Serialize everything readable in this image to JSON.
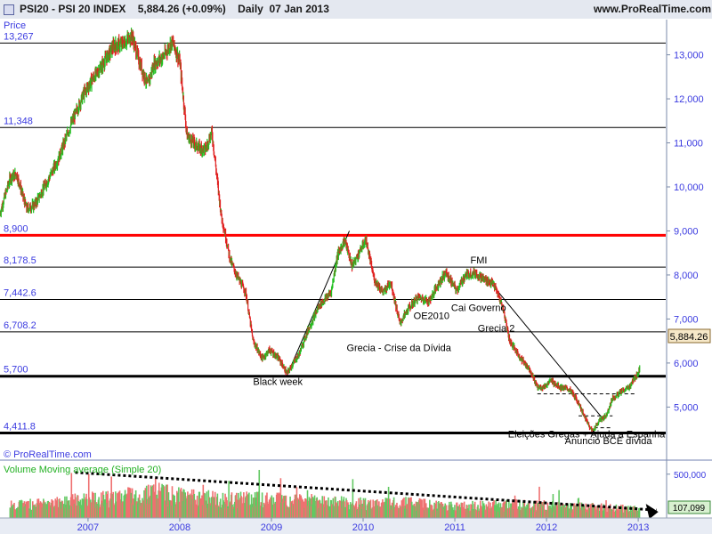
{
  "header": {
    "symbol": "PSI20 - PSI 20 INDEX",
    "price_change": "5,884.26 (+0.09%)",
    "period": "Daily  07 Jan 2013",
    "site": "www.ProRealTime.com"
  },
  "price_axis_label": "Price",
  "watermark": "© ProRealTime.com",
  "current_price_label": "5,884.26",
  "volume_label": "Volume Moving average (Simple 20)",
  "volume_current_label": "107,099",
  "colors": {
    "up": "#22c022",
    "down": "#e02020",
    "ma_red": "#ff0000",
    "accent_blue": "#3a3ae0"
  },
  "chart_data": {
    "type": "line",
    "title": "PSI20 - PSI 20 INDEX",
    "x_ticks": [
      "2007",
      "2008",
      "2009",
      "2010",
      "2011",
      "2012",
      "2013"
    ],
    "y_ticks": [
      "13,000",
      "12,000",
      "11,000",
      "10,000",
      "9,000",
      "8,000",
      "7,000",
      "6,000",
      "5,000"
    ],
    "y_tick_values": [
      13000,
      12000,
      11000,
      10000,
      9000,
      8000,
      7000,
      6000,
      5000
    ],
    "ylim": [
      4300,
      13800
    ],
    "xlim": [
      2006.04,
      2013.3
    ],
    "volume_ticks": [
      "500,000"
    ],
    "levels": [
      {
        "label": "13,267",
        "value": 13267,
        "kind": "thin"
      },
      {
        "label": "11,348",
        "value": 11348,
        "kind": "thin"
      },
      {
        "label": "8,900",
        "value": 8900,
        "kind": "red"
      },
      {
        "label": "8,178.5",
        "value": 8178.5,
        "kind": "thin"
      },
      {
        "label": "7,442.6",
        "value": 7442.6,
        "kind": "thin"
      },
      {
        "label": "6,708.2",
        "value": 6708.2,
        "kind": "thin"
      },
      {
        "label": "5,700",
        "value": 5700,
        "kind": "thick"
      },
      {
        "label": "4,411.8",
        "value": 4411.8,
        "kind": "thick"
      }
    ],
    "price_series": [
      [
        2006.04,
        9400
      ],
      [
        2006.15,
        10200
      ],
      [
        2006.22,
        10300
      ],
      [
        2006.33,
        9500
      ],
      [
        2006.42,
        9600
      ],
      [
        2006.55,
        10100
      ],
      [
        2006.68,
        10650
      ],
      [
        2006.82,
        11450
      ],
      [
        2006.95,
        12100
      ],
      [
        2007.05,
        12450
      ],
      [
        2007.15,
        12750
      ],
      [
        2007.28,
        13200
      ],
      [
        2007.38,
        13250
      ],
      [
        2007.48,
        13430
      ],
      [
        2007.55,
        12900
      ],
      [
        2007.65,
        12300
      ],
      [
        2007.72,
        12800
      ],
      [
        2007.82,
        12950
      ],
      [
        2007.92,
        13300
      ],
      [
        2008.0,
        12850
      ],
      [
        2008.08,
        11150
      ],
      [
        2008.2,
        10900
      ],
      [
        2008.28,
        10850
      ],
      [
        2008.35,
        11250
      ],
      [
        2008.45,
        9400
      ],
      [
        2008.55,
        8350
      ],
      [
        2008.62,
        8000
      ],
      [
        2008.72,
        7600
      ],
      [
        2008.8,
        6500
      ],
      [
        2008.9,
        6100
      ],
      [
        2008.98,
        6300
      ],
      [
        2009.08,
        6100
      ],
      [
        2009.17,
        5760
      ],
      [
        2009.3,
        6200
      ],
      [
        2009.4,
        6750
      ],
      [
        2009.52,
        7300
      ],
      [
        2009.65,
        7600
      ],
      [
        2009.72,
        8450
      ],
      [
        2009.8,
        8800
      ],
      [
        2009.88,
        8200
      ],
      [
        2009.95,
        8480
      ],
      [
        2010.03,
        8800
      ],
      [
        2010.12,
        7900
      ],
      [
        2010.22,
        7600
      ],
      [
        2010.3,
        7850
      ],
      [
        2010.4,
        6900
      ],
      [
        2010.5,
        7250
      ],
      [
        2010.6,
        7500
      ],
      [
        2010.72,
        7400
      ],
      [
        2010.82,
        7800
      ],
      [
        2010.9,
        8050
      ],
      [
        2011.02,
        7650
      ],
      [
        2011.12,
        8000
      ],
      [
        2011.22,
        8050
      ],
      [
        2011.32,
        7900
      ],
      [
        2011.42,
        7800
      ],
      [
        2011.52,
        7300
      ],
      [
        2011.6,
        6500
      ],
      [
        2011.72,
        6100
      ],
      [
        2011.82,
        5850
      ],
      [
        2011.9,
        5450
      ],
      [
        2011.97,
        5450
      ],
      [
        2012.05,
        5600
      ],
      [
        2012.15,
        5450
      ],
      [
        2012.25,
        5400
      ],
      [
        2012.35,
        5100
      ],
      [
        2012.42,
        4750
      ],
      [
        2012.5,
        4450
      ],
      [
        2012.58,
        4700
      ],
      [
        2012.65,
        4800
      ],
      [
        2012.72,
        5200
      ],
      [
        2012.82,
        5350
      ],
      [
        2012.9,
        5450
      ],
      [
        2013.0,
        5780
      ],
      [
        2013.02,
        5884
      ]
    ],
    "trendlines": [
      {
        "from": [
          2009.17,
          5720
        ],
        "to": [
          2009.85,
          9000
        ],
        "style": "solid"
      },
      {
        "from": [
          2011.38,
          7850
        ],
        "to": [
          2012.62,
          4720
        ],
        "style": "solid"
      },
      {
        "from": [
          2011.9,
          5300
        ],
        "to": [
          2012.97,
          5300
        ],
        "style": "dashed"
      },
      {
        "from": [
          2012.35,
          4800
        ],
        "to": [
          2012.72,
          4800
        ],
        "style": "dashed"
      },
      {
        "from": [
          2012.52,
          4530
        ],
        "to": [
          2012.72,
          4530
        ],
        "style": "dashed"
      }
    ],
    "annotations": [
      {
        "text": "Black week",
        "x": 2008.8,
        "y": 5500
      },
      {
        "text": "Grecia - Crise da Dívida",
        "x": 2009.82,
        "y": 6270
      },
      {
        "text": "OE2010",
        "x": 2010.55,
        "y": 7000
      },
      {
        "text": "Cai Governo",
        "x": 2010.96,
        "y": 7180
      },
      {
        "text": "FMI",
        "x": 2011.17,
        "y": 8260
      },
      {
        "text": "Grecia 2",
        "x": 2011.25,
        "y": 6720
      },
      {
        "text": "Eleições Gregas + Ajuda a Espanha",
        "x": 2011.58,
        "y": 4310
      },
      {
        "text": "Anuncio BCE dívida",
        "x": 2012.2,
        "y": 4160
      }
    ],
    "volume_series": [
      [
        2006.15,
        150000
      ],
      [
        2006.6,
        180000
      ],
      [
        2006.9,
        210000
      ],
      [
        2007.2,
        240000
      ],
      [
        2007.5,
        280000
      ],
      [
        2007.8,
        300000
      ],
      [
        2008.1,
        260000
      ],
      [
        2008.5,
        220000
      ],
      [
        2008.9,
        230000
      ],
      [
        2009.3,
        200000
      ],
      [
        2009.7,
        190000
      ],
      [
        2010.1,
        170000
      ],
      [
        2010.5,
        180000
      ],
      [
        2010.9,
        140000
      ],
      [
        2011.3,
        150000
      ],
      [
        2011.7,
        160000
      ],
      [
        2012.1,
        140000
      ],
      [
        2012.5,
        130000
      ],
      [
        2012.9,
        110000
      ],
      [
        2013.02,
        107099
      ]
    ],
    "volume_trend": {
      "from": [
        2006.86,
        520000
      ],
      "to": [
        2013.2,
        90000
      ]
    }
  }
}
